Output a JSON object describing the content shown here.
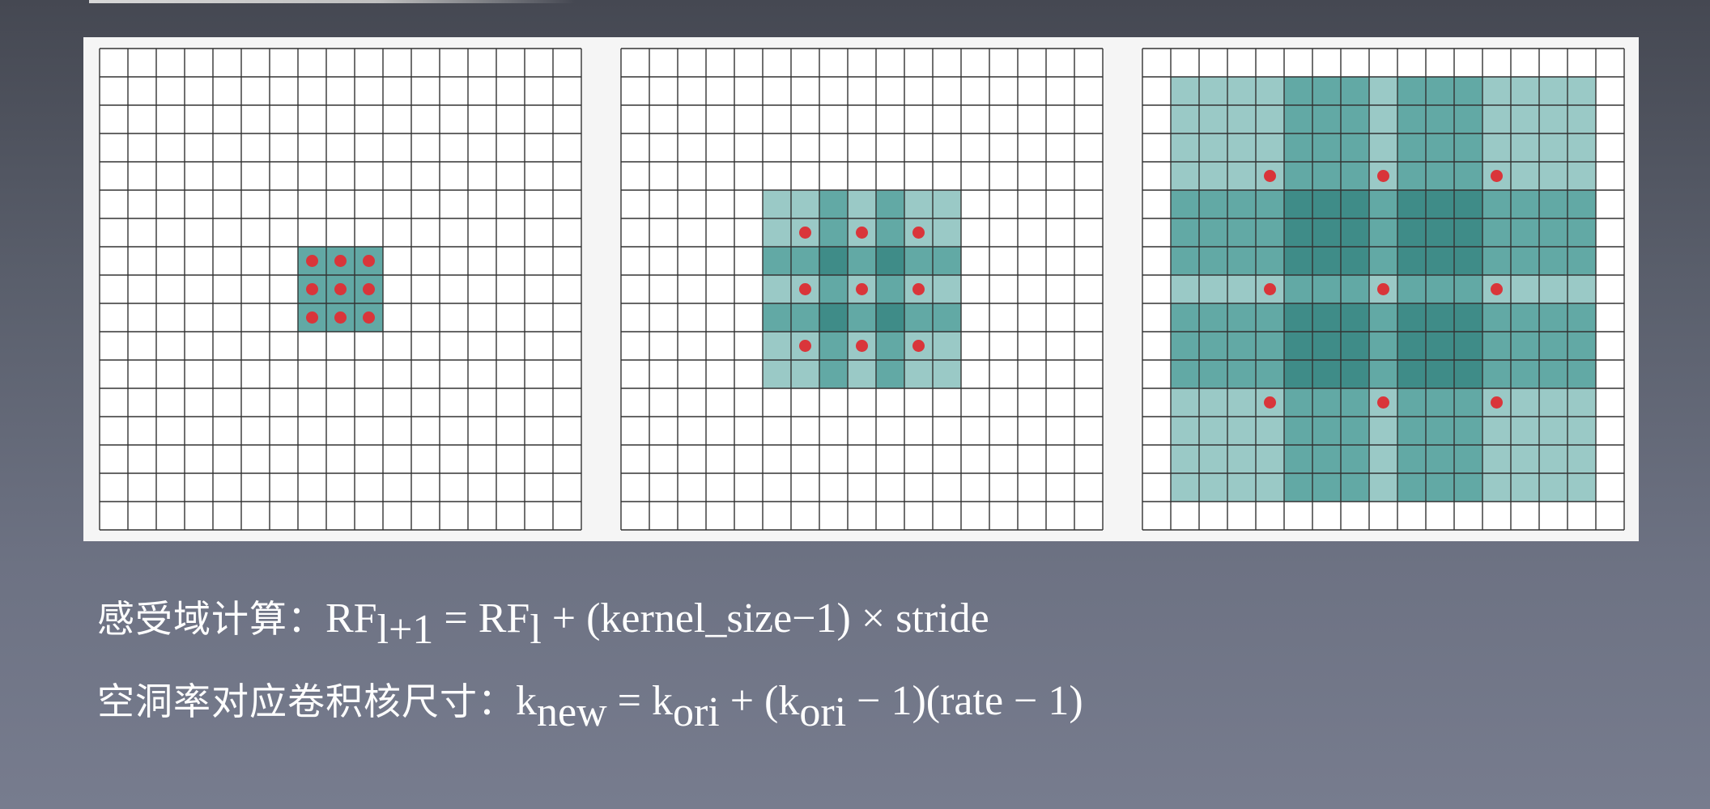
{
  "diagram": {
    "grid_cells": 17,
    "colors": {
      "panel_bg": "#f5f5f5",
      "cell_fill": "#ffffff",
      "grid_line": "#333333",
      "teal_light": "#9ac9c6",
      "teal_mid": "#62a9a5",
      "teal_dark": "#3f8c88",
      "dot": "#d9353a"
    },
    "grids": [
      {
        "name": "dilation-rate-1",
        "dilation_rate": 1,
        "kernel_size": 3,
        "receptive_field": 3,
        "center_cell": [
          8,
          8
        ]
      },
      {
        "name": "dilation-rate-2",
        "dilation_rate": 2,
        "kernel_size": 3,
        "receptive_field": 7,
        "center_cell": [
          8,
          8
        ]
      },
      {
        "name": "dilation-rate-4",
        "dilation_rate": 4,
        "kernel_size": 3,
        "receptive_field": 15,
        "center_cell": [
          8,
          8
        ]
      }
    ]
  },
  "formulas": {
    "receptive_field": {
      "label": "感受域计算：",
      "lhs": "RF",
      "lhs_sub": "l+1",
      "eq": " = ",
      "rhs1": "RF",
      "rhs1_sub": "l",
      "rhs2": " + (kernel_size−1) × stride"
    },
    "dilated_kernel": {
      "label": "空洞率对应卷积核尺寸：",
      "k1": "k",
      "k1_sub": "new",
      "eq": " = k",
      "k2_sub": "ori",
      "plus": " + (k",
      "k3_sub": "ori",
      "tail": " − 1)(rate − 1)"
    }
  }
}
